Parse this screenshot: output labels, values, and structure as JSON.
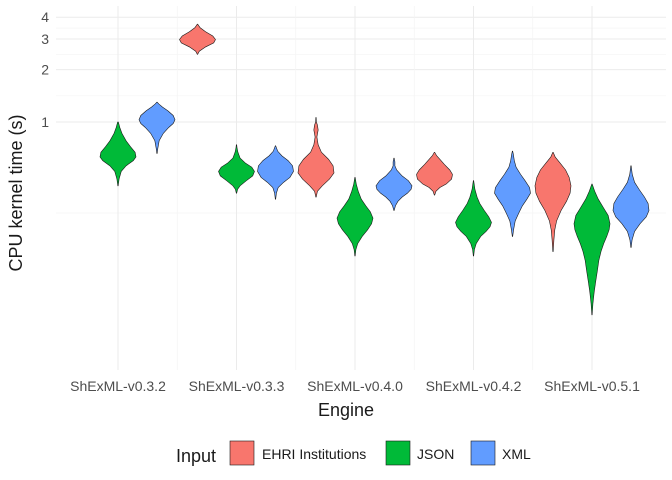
{
  "chart_data": {
    "type": "violin",
    "xlabel": "Engine",
    "ylabel": "CPU kernel time (s)",
    "y_scale": "log10",
    "ylim": [
      0.07,
      4.6
    ],
    "y_ticks": [
      1,
      2,
      3,
      4
    ],
    "y_tick_labels": [
      "1",
      "2",
      "3",
      "4"
    ],
    "grid": true,
    "legend_position": "bottom",
    "legend_title": "Input",
    "categories": [
      "ShExML-v0.3.2",
      "ShExML-v0.3.3",
      "ShExML-v0.4.0",
      "ShExML-v0.4.2",
      "ShExML-v0.5.1"
    ],
    "series": [
      {
        "name": "EHRI Institutions",
        "color": "#F8766D"
      },
      {
        "name": "JSON",
        "color": "#00BA38"
      },
      {
        "name": "XML",
        "color": "#619CFF"
      }
    ],
    "violins": [
      {
        "engine": "ShExML-v0.3.2",
        "input": "JSON",
        "min": 0.43,
        "max": 1.0,
        "profile": [
          [
            0.43,
            0.01
          ],
          [
            0.47,
            0.06
          ],
          [
            0.52,
            0.18
          ],
          [
            0.56,
            0.45
          ],
          [
            0.6,
            0.85
          ],
          [
            0.63,
            1.0
          ],
          [
            0.67,
            0.95
          ],
          [
            0.72,
            0.7
          ],
          [
            0.78,
            0.45
          ],
          [
            0.86,
            0.22
          ],
          [
            0.93,
            0.1
          ],
          [
            1.0,
            0.02
          ]
        ]
      },
      {
        "engine": "ShExML-v0.3.2",
        "input": "XML",
        "min": 0.66,
        "max": 1.3,
        "profile": [
          [
            0.66,
            0.01
          ],
          [
            0.7,
            0.04
          ],
          [
            0.78,
            0.12
          ],
          [
            0.86,
            0.35
          ],
          [
            0.93,
            0.65
          ],
          [
            0.98,
            0.9
          ],
          [
            1.03,
            1.0
          ],
          [
            1.09,
            0.9
          ],
          [
            1.16,
            0.6
          ],
          [
            1.22,
            0.3
          ],
          [
            1.27,
            0.1
          ],
          [
            1.3,
            0.01
          ]
        ]
      },
      {
        "engine": "ShExML-v0.3.3",
        "input": "EHRI Institutions",
        "min": 2.45,
        "max": 3.65,
        "profile": [
          [
            2.45,
            0.01
          ],
          [
            2.55,
            0.1
          ],
          [
            2.7,
            0.45
          ],
          [
            2.85,
            0.9
          ],
          [
            2.98,
            1.0
          ],
          [
            3.12,
            0.85
          ],
          [
            3.3,
            0.45
          ],
          [
            3.48,
            0.15
          ],
          [
            3.65,
            0.01
          ]
        ]
      },
      {
        "engine": "ShExML-v0.3.3",
        "input": "JSON",
        "min": 0.39,
        "max": 0.74,
        "profile": [
          [
            0.39,
            0.01
          ],
          [
            0.41,
            0.06
          ],
          [
            0.43,
            0.2
          ],
          [
            0.46,
            0.55
          ],
          [
            0.49,
            0.9
          ],
          [
            0.52,
            1.0
          ],
          [
            0.55,
            0.85
          ],
          [
            0.58,
            0.5
          ],
          [
            0.62,
            0.2
          ],
          [
            0.67,
            0.08
          ],
          [
            0.71,
            0.03
          ],
          [
            0.74,
            0.01
          ]
        ]
      },
      {
        "engine": "ShExML-v0.3.3",
        "input": "XML",
        "min": 0.36,
        "max": 0.73,
        "profile": [
          [
            0.36,
            0.01
          ],
          [
            0.39,
            0.05
          ],
          [
            0.42,
            0.15
          ],
          [
            0.45,
            0.45
          ],
          [
            0.48,
            0.8
          ],
          [
            0.52,
            1.0
          ],
          [
            0.56,
            0.95
          ],
          [
            0.6,
            0.7
          ],
          [
            0.64,
            0.35
          ],
          [
            0.68,
            0.12
          ],
          [
            0.73,
            0.01
          ]
        ]
      },
      {
        "engine": "ShExML-v0.4.0",
        "input": "EHRI Institutions",
        "min": 0.37,
        "max": 1.06,
        "profile": [
          [
            0.37,
            0.01
          ],
          [
            0.4,
            0.08
          ],
          [
            0.43,
            0.35
          ],
          [
            0.47,
            0.75
          ],
          [
            0.51,
            1.0
          ],
          [
            0.56,
            0.95
          ],
          [
            0.61,
            0.7
          ],
          [
            0.67,
            0.3
          ],
          [
            0.74,
            0.12
          ],
          [
            0.82,
            0.05
          ],
          [
            0.9,
            0.12
          ],
          [
            0.96,
            0.08
          ],
          [
            1.0,
            0.02
          ],
          [
            1.06,
            0.01
          ]
        ]
      },
      {
        "engine": "ShExML-v0.4.0",
        "input": "JSON",
        "min": 0.17,
        "max": 0.48,
        "profile": [
          [
            0.17,
            0.01
          ],
          [
            0.185,
            0.05
          ],
          [
            0.2,
            0.15
          ],
          [
            0.22,
            0.4
          ],
          [
            0.24,
            0.7
          ],
          [
            0.26,
            0.92
          ],
          [
            0.28,
            1.0
          ],
          [
            0.305,
            0.85
          ],
          [
            0.33,
            0.6
          ],
          [
            0.36,
            0.35
          ],
          [
            0.4,
            0.18
          ],
          [
            0.44,
            0.07
          ],
          [
            0.48,
            0.01
          ]
        ]
      },
      {
        "engine": "ShExML-v0.4.0",
        "input": "XML",
        "min": 0.31,
        "max": 0.62,
        "profile": [
          [
            0.31,
            0.01
          ],
          [
            0.33,
            0.08
          ],
          [
            0.35,
            0.22
          ],
          [
            0.37,
            0.45
          ],
          [
            0.39,
            0.75
          ],
          [
            0.41,
            0.95
          ],
          [
            0.43,
            1.0
          ],
          [
            0.46,
            0.8
          ],
          [
            0.49,
            0.45
          ],
          [
            0.53,
            0.15
          ],
          [
            0.56,
            0.05
          ],
          [
            0.59,
            0.05
          ],
          [
            0.62,
            0.01
          ]
        ]
      },
      {
        "engine": "ShExML-v0.4.2",
        "input": "EHRI Institutions",
        "min": 0.38,
        "max": 0.67,
        "profile": [
          [
            0.38,
            0.01
          ],
          [
            0.4,
            0.08
          ],
          [
            0.42,
            0.3
          ],
          [
            0.44,
            0.65
          ],
          [
            0.47,
            0.95
          ],
          [
            0.5,
            1.0
          ],
          [
            0.53,
            0.85
          ],
          [
            0.57,
            0.55
          ],
          [
            0.61,
            0.3
          ],
          [
            0.64,
            0.12
          ],
          [
            0.67,
            0.01
          ]
        ]
      },
      {
        "engine": "ShExML-v0.4.2",
        "input": "JSON",
        "min": 0.17,
        "max": 0.46,
        "profile": [
          [
            0.17,
            0.01
          ],
          [
            0.185,
            0.05
          ],
          [
            0.2,
            0.15
          ],
          [
            0.22,
            0.4
          ],
          [
            0.235,
            0.7
          ],
          [
            0.25,
            0.92
          ],
          [
            0.265,
            1.0
          ],
          [
            0.285,
            0.85
          ],
          [
            0.31,
            0.6
          ],
          [
            0.34,
            0.35
          ],
          [
            0.37,
            0.2
          ],
          [
            0.41,
            0.08
          ],
          [
            0.46,
            0.01
          ]
        ]
      },
      {
        "engine": "ShExML-v0.4.2",
        "input": "XML",
        "min": 0.22,
        "max": 0.68,
        "profile": [
          [
            0.22,
            0.01
          ],
          [
            0.24,
            0.06
          ],
          [
            0.27,
            0.15
          ],
          [
            0.3,
            0.35
          ],
          [
            0.33,
            0.55
          ],
          [
            0.36,
            0.8
          ],
          [
            0.39,
            1.0
          ],
          [
            0.42,
            0.95
          ],
          [
            0.46,
            0.7
          ],
          [
            0.5,
            0.45
          ],
          [
            0.55,
            0.2
          ],
          [
            0.6,
            0.1
          ],
          [
            0.65,
            0.05
          ],
          [
            0.68,
            0.01
          ]
        ]
      },
      {
        "engine": "ShExML-v0.5.1",
        "input": "EHRI Institutions",
        "min": 0.18,
        "max": 0.67,
        "profile": [
          [
            0.18,
            0.01
          ],
          [
            0.21,
            0.05
          ],
          [
            0.24,
            0.1
          ],
          [
            0.27,
            0.2
          ],
          [
            0.31,
            0.45
          ],
          [
            0.35,
            0.75
          ],
          [
            0.39,
            0.95
          ],
          [
            0.43,
            1.0
          ],
          [
            0.48,
            0.9
          ],
          [
            0.53,
            0.7
          ],
          [
            0.58,
            0.4
          ],
          [
            0.63,
            0.12
          ],
          [
            0.67,
            0.01
          ]
        ]
      },
      {
        "engine": "ShExML-v0.5.1",
        "input": "JSON",
        "min": 0.078,
        "max": 0.44,
        "profile": [
          [
            0.078,
            0.01
          ],
          [
            0.09,
            0.05
          ],
          [
            0.105,
            0.12
          ],
          [
            0.12,
            0.2
          ],
          [
            0.14,
            0.3
          ],
          [
            0.16,
            0.38
          ],
          [
            0.18,
            0.5
          ],
          [
            0.2,
            0.65
          ],
          [
            0.22,
            0.82
          ],
          [
            0.24,
            0.95
          ],
          [
            0.26,
            1.0
          ],
          [
            0.29,
            0.9
          ],
          [
            0.32,
            0.65
          ],
          [
            0.36,
            0.35
          ],
          [
            0.4,
            0.15
          ],
          [
            0.44,
            0.01
          ]
        ]
      },
      {
        "engine": "ShExML-v0.5.1",
        "input": "XML",
        "min": 0.19,
        "max": 0.56,
        "profile": [
          [
            0.19,
            0.01
          ],
          [
            0.21,
            0.06
          ],
          [
            0.235,
            0.2
          ],
          [
            0.26,
            0.5
          ],
          [
            0.285,
            0.85
          ],
          [
            0.31,
            1.0
          ],
          [
            0.34,
            0.95
          ],
          [
            0.37,
            0.75
          ],
          [
            0.41,
            0.45
          ],
          [
            0.45,
            0.2
          ],
          [
            0.5,
            0.07
          ],
          [
            0.56,
            0.01
          ]
        ]
      }
    ]
  }
}
